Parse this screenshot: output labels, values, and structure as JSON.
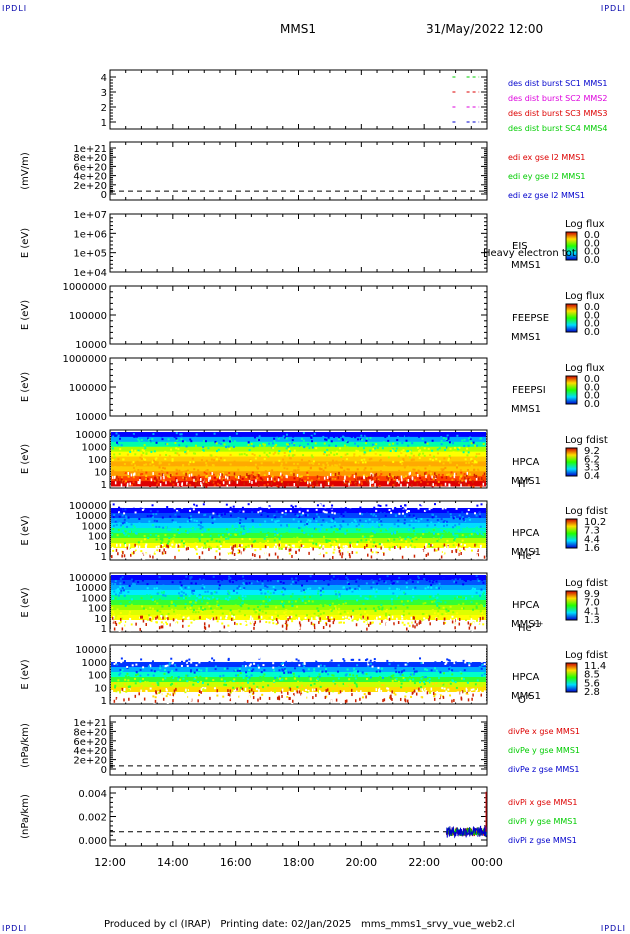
{
  "header": {
    "corner_label": "IPDLI",
    "title": "MMS1",
    "datetime": "31/May/2022 12:00"
  },
  "footer": {
    "produced": "Produced by cl (IRAP)",
    "printing": "Printing date: 02/Jan/2025",
    "file": "mms_mms1_srvy_vue_web2.cl"
  },
  "colors": {
    "red": "#dd0000",
    "green": "#00cc00",
    "blue": "#0000cc",
    "magenta": "#dd00dd",
    "axis": "#000000"
  },
  "chart_data": [
    {
      "type": "line",
      "panel": "burst",
      "ylabel": "",
      "ticks": [
        "4",
        "3",
        "2",
        "1"
      ],
      "ylim": [
        0.5,
        4.5
      ],
      "series": [
        {
          "name": "des dist burst SC1 MMS1",
          "color": "#0000cc",
          "level": 1
        },
        {
          "name": "des dist burst SC2 MMS2",
          "color": "#dd00dd",
          "level": 2
        },
        {
          "name": "des dist burst SC3 MMS3",
          "color": "#dd0000",
          "level": 3
        },
        {
          "name": "des dist burst SC4 MMS4",
          "color": "#00cc00",
          "level": 4
        }
      ],
      "segments_x_hours": [
        [
          22.9,
          23.0
        ],
        [
          23.35,
          23.75
        ]
      ]
    },
    {
      "type": "line",
      "panel": "edi",
      "ylabel": "(mV/m)",
      "ticks": [
        "1e+21",
        "8e+20",
        "6e+20",
        "4e+20",
        "2e+20",
        "0"
      ],
      "ylim": [
        -2e+20,
        1.1e+21
      ],
      "zero_line": true,
      "series": [
        {
          "name": "edi ex gse l2 MMS1",
          "color": "#dd0000"
        },
        {
          "name": "edi ey gse l2 MMS1",
          "color": "#00cc00"
        },
        {
          "name": "edi ez gse l2 MMS1",
          "color": "#0000cc"
        }
      ]
    },
    {
      "type": "heatmap",
      "panel": "eis",
      "ylabel": "E (eV)",
      "ticks": [
        "1e+07",
        "1e+06",
        "1e+05",
        "1e+04"
      ],
      "inst_lines": [
        "EIS",
        "MMS1"
      ],
      "overlay_text": "Heavy electron tot",
      "colorbar_title": "Log flux",
      "colorbar_ticks": [
        "0.0",
        "0.0",
        "0.0",
        "0.0"
      ],
      "empty": true
    },
    {
      "type": "heatmap",
      "panel": "feepse",
      "ylabel": "E (eV)",
      "ticks": [
        "1000000",
        "100000",
        "10000"
      ],
      "inst_lines": [
        "FEEPSE",
        "MMS1"
      ],
      "colorbar_title": "Log flux",
      "colorbar_ticks": [
        "0.0",
        "0.0",
        "0.0",
        "0.0"
      ],
      "empty": true
    },
    {
      "type": "heatmap",
      "panel": "feepsi",
      "ylabel": "E (eV)",
      "ticks": [
        "1000000",
        "100000",
        "10000"
      ],
      "inst_lines": [
        "FEEPSI",
        "MMS1"
      ],
      "colorbar_title": "Log flux",
      "colorbar_ticks": [
        "0.0",
        "0.0",
        "0.0",
        "0.0"
      ],
      "empty": true
    },
    {
      "type": "heatmap",
      "panel": "hpca_h",
      "ylabel": "E (eV)",
      "ticks": [
        "10000",
        "1000",
        "100",
        "10",
        "1"
      ],
      "inst_lines": [
        "HPCA",
        "MMS1"
      ],
      "species": "H",
      "species_sup": "+",
      "colorbar_title": "Log fdist",
      "colorbar_ticks": [
        "9.2",
        "6.2",
        "3.3",
        "0.4"
      ],
      "bands": [
        "#0000ff",
        "#00aaff",
        "#00ffaa",
        "#aaff00",
        "#ffff00",
        "#ffcc00",
        "#ffaa00",
        "#ffcc00",
        "#ff9900",
        "#ff4400",
        "#dd0000"
      ]
    },
    {
      "type": "heatmap",
      "panel": "hpca_he",
      "ylabel": "E (eV)",
      "ticks": [
        "100000",
        "10000",
        "1000",
        "100",
        "10",
        "1"
      ],
      "inst_lines": [
        "HPCA",
        "MMS1"
      ],
      "species": "He",
      "species_sup": "+",
      "colorbar_title": "Log fdist",
      "colorbar_ticks": [
        "10.2",
        "7.3",
        "4.4",
        "1.6"
      ],
      "bands": [
        "#ffffff",
        "#0000ff",
        "#0044ff",
        "#0099ff",
        "#00ddff",
        "#00ffaa",
        "#33ff33",
        "#aaff00",
        "#ffff00",
        "#ffffff",
        "#ffffff"
      ]
    },
    {
      "type": "heatmap",
      "panel": "hpca_hepp",
      "ylabel": "E (eV)",
      "ticks": [
        "100000",
        "10000",
        "1000",
        "100",
        "10",
        "1"
      ],
      "inst_lines": [
        "HPCA",
        "MMS1"
      ],
      "species": "He",
      "species_sup": "++",
      "colorbar_title": "Log fdist",
      "colorbar_ticks": [
        "9.9",
        "7.0",
        "4.1",
        "1.3"
      ],
      "bands": [
        "#0000ff",
        "#0055ff",
        "#00aaff",
        "#00eeff",
        "#00ff99",
        "#33ff33",
        "#99ff00",
        "#ddff00",
        "#ffff00",
        "#ffffff",
        "#ffffff"
      ]
    },
    {
      "type": "heatmap",
      "panel": "hpca_o",
      "ylabel": "E (eV)",
      "ticks": [
        "10000",
        "1000",
        "100",
        "10",
        "1"
      ],
      "inst_lines": [
        "HPCA",
        "MMS1"
      ],
      "species": "O",
      "species_sup": "+",
      "colorbar_title": "Log fdist",
      "colorbar_ticks": [
        "11.4",
        "8.5",
        "5.6",
        "2.8"
      ],
      "bands": [
        "#ffffff",
        "#ffffff",
        "#ffffff",
        "#0033ff",
        "#00aaff",
        "#00ffcc",
        "#33ff33",
        "#ccff00",
        "#ffdd00",
        "#ffffff",
        "#ffffff"
      ]
    },
    {
      "type": "line",
      "panel": "divpe",
      "ylabel": "(nPa/km)",
      "ticks": [
        "1e+21",
        "8e+20",
        "6e+20",
        "4e+20",
        "2e+20",
        "0"
      ],
      "ylim": [
        -2e+20,
        1.1e+21
      ],
      "zero_line": true,
      "series": [
        {
          "name": "divPe x gse MMS1",
          "color": "#dd0000"
        },
        {
          "name": "divPe y gse MMS1",
          "color": "#00cc00"
        },
        {
          "name": "divPe z gse MMS1",
          "color": "#0000cc"
        }
      ]
    },
    {
      "type": "line",
      "panel": "divpi",
      "ylabel": "(nPa/km)",
      "ticks": [
        "0.004",
        "0.002",
        "0.000"
      ],
      "ylim": [
        -0.0015,
        0.0047
      ],
      "zero_line": true,
      "series": [
        {
          "name": "divPi x gse MMS1",
          "color": "#dd0000"
        },
        {
          "name": "divPi y gse MMS1",
          "color": "#00cc00"
        },
        {
          "name": "divPi z gse MMS1",
          "color": "#0000cc"
        }
      ],
      "data_x_range_hours": [
        22.7,
        24.0
      ],
      "noise_amplitude": 0.0006,
      "spike": {
        "x": 23.97,
        "y": 0.0042
      }
    }
  ],
  "xaxis": {
    "ticks": [
      "12:00",
      "14:00",
      "16:00",
      "18:00",
      "20:00",
      "22:00",
      "00:00"
    ],
    "xlim_hours": [
      12,
      24
    ]
  }
}
